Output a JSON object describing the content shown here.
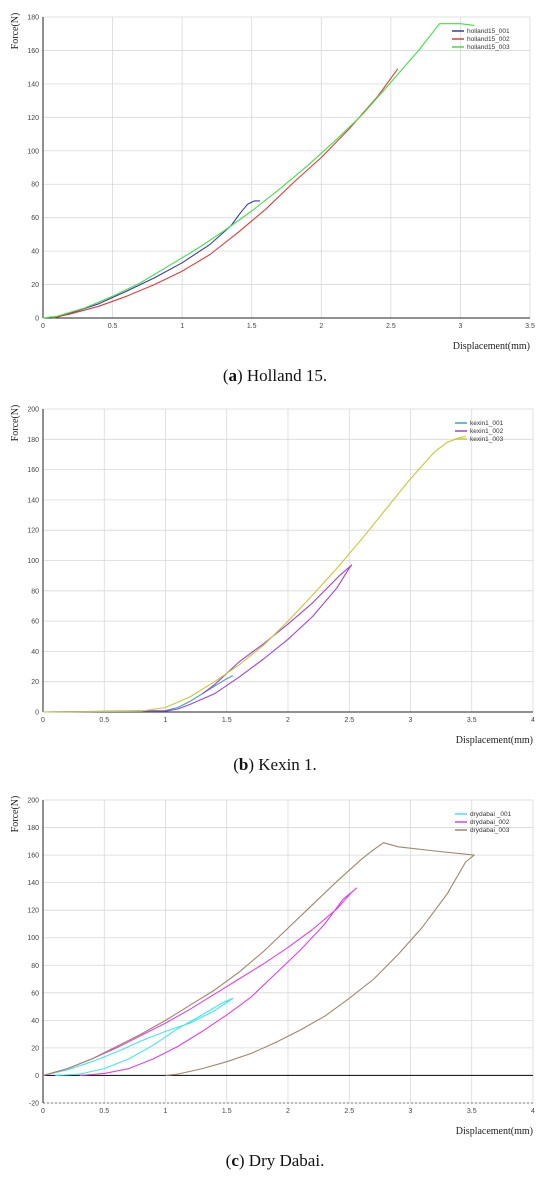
{
  "chart_data": [
    {
      "type": "line",
      "caption_letter": "a",
      "caption_text": " Holland 15.",
      "xlabel": "Displacement(mm)",
      "ylabel": "Force(N)",
      "xlim": [
        0,
        3.5
      ],
      "ylim": [
        0,
        180
      ],
      "xticks": [
        0,
        0.5,
        1,
        1.5,
        2,
        2.5,
        3,
        3.5
      ],
      "yticks": [
        0,
        20,
        40,
        60,
        80,
        100,
        120,
        140,
        160,
        180
      ],
      "grid": true,
      "legend": "top-right",
      "series": [
        {
          "name": "holland15_001",
          "color": "#3a3aa8",
          "points": [
            [
              0.08,
              0
            ],
            [
              0.2,
              3
            ],
            [
              0.4,
              8.5
            ],
            [
              0.6,
              16
            ],
            [
              0.8,
              24
            ],
            [
              1.0,
              33
            ],
            [
              1.2,
              44
            ],
            [
              1.35,
              55
            ],
            [
              1.42,
              63
            ],
            [
              1.47,
              68
            ],
            [
              1.52,
              70
            ],
            [
              1.56,
              70
            ]
          ]
        },
        {
          "name": "holland15_002",
          "color": "#e03a3a",
          "points": [
            [
              0.07,
              0
            ],
            [
              0.2,
              2.5
            ],
            [
              0.4,
              7
            ],
            [
              0.6,
              13
            ],
            [
              0.8,
              20
            ],
            [
              1.0,
              28
            ],
            [
              1.2,
              38
            ],
            [
              1.4,
              51
            ],
            [
              1.6,
              65
            ],
            [
              1.8,
              81
            ],
            [
              2.0,
              96
            ],
            [
              2.2,
              113
            ],
            [
              2.4,
              132
            ],
            [
              2.48,
              141
            ],
            [
              2.55,
              149
            ]
          ]
        },
        {
          "name": "holland15_003",
          "color": "#40e040",
          "points": [
            [
              0,
              0
            ],
            [
              0.1,
              1
            ],
            [
              0.3,
              6
            ],
            [
              0.5,
              13
            ],
            [
              0.7,
              21
            ],
            [
              0.9,
              31
            ],
            [
              1.1,
              41
            ],
            [
              1.3,
              52
            ],
            [
              1.5,
              64
            ],
            [
              1.7,
              77
            ],
            [
              1.9,
              91
            ],
            [
              2.1,
              106
            ],
            [
              2.3,
              122
            ],
            [
              2.5,
              141
            ],
            [
              2.7,
              160
            ],
            [
              2.85,
              176
            ],
            [
              3.0,
              176
            ],
            [
              3.1,
              175
            ]
          ]
        }
      ]
    },
    {
      "type": "line",
      "caption_letter": "b",
      "caption_text": " Kexin 1.",
      "xlabel": "Displacement(mm)",
      "ylabel": "Force(N)",
      "xlim": [
        0,
        4
      ],
      "ylim": [
        0,
        200
      ],
      "xticks": [
        0,
        0.5,
        1,
        1.5,
        2,
        2.5,
        3,
        3.5,
        4
      ],
      "yticks": [
        0,
        20,
        40,
        60,
        80,
        100,
        120,
        140,
        160,
        180,
        200
      ],
      "grid": true,
      "legend": "top-right",
      "series": [
        {
          "name": "kexin1_001",
          "color": "#3aa0c8",
          "points": [
            [
              0,
              0
            ],
            [
              0.6,
              0.5
            ],
            [
              1.0,
              1
            ],
            [
              1.1,
              3
            ],
            [
              1.2,
              7
            ],
            [
              1.3,
              12
            ],
            [
              1.4,
              17
            ],
            [
              1.5,
              22
            ],
            [
              1.55,
              24
            ]
          ]
        },
        {
          "name": "kexin1_002",
          "color": "#a040e0",
          "points": [
            [
              0,
              0
            ],
            [
              0.7,
              0.5
            ],
            [
              1.0,
              0.5
            ],
            [
              1.1,
              2
            ],
            [
              1.2,
              5
            ],
            [
              1.4,
              12
            ],
            [
              1.6,
              23
            ],
            [
              1.8,
              35
            ],
            [
              2.0,
              48
            ],
            [
              2.2,
              63
            ],
            [
              2.4,
              82
            ],
            [
              2.5,
              95
            ],
            [
              2.52,
              97
            ],
            [
              2.42,
              90
            ],
            [
              2.2,
              72
            ],
            [
              2.0,
              58
            ],
            [
              1.8,
              45
            ],
            [
              1.6,
              33
            ],
            [
              1.4,
              18
            ],
            [
              1.3,
              12
            ]
          ]
        },
        {
          "name": "kexin1_003",
          "color": "#c8c832",
          "points": [
            [
              0,
              0
            ],
            [
              0.8,
              0.5
            ],
            [
              1.0,
              3
            ],
            [
              1.2,
              10
            ],
            [
              1.4,
              20
            ],
            [
              1.6,
              31
            ],
            [
              1.8,
              44
            ],
            [
              2.0,
              60
            ],
            [
              2.2,
              77
            ],
            [
              2.4,
              95
            ],
            [
              2.6,
              114
            ],
            [
              2.8,
              134
            ],
            [
              3.0,
              154
            ],
            [
              3.2,
              172
            ],
            [
              3.3,
              178
            ],
            [
              3.4,
              181
            ],
            [
              3.45,
              182
            ]
          ]
        }
      ]
    },
    {
      "type": "line",
      "caption_letter": "c",
      "caption_text": " Dry Dabai.",
      "xlabel": "Displacement(mm)",
      "ylabel": "Force(N)",
      "xlim": [
        0,
        4
      ],
      "ylim": [
        -20,
        200
      ],
      "xticks": [
        0,
        0.5,
        1,
        1.5,
        2,
        2.5,
        3,
        3.5,
        4
      ],
      "yticks": [
        -20,
        0,
        20,
        40,
        60,
        80,
        100,
        120,
        140,
        160,
        180,
        200
      ],
      "grid": true,
      "legend": "top-right",
      "series": [
        {
          "name": "drydabai _001",
          "color": "#40e8e8",
          "points": [
            [
              0,
              0
            ],
            [
              0.2,
              4
            ],
            [
              0.4,
              10
            ],
            [
              0.6,
              17
            ],
            [
              0.8,
              25
            ],
            [
              1.0,
              32
            ],
            [
              1.2,
              38
            ],
            [
              1.4,
              47
            ],
            [
              1.5,
              53
            ],
            [
              1.55,
              56
            ],
            [
              1.45,
              52
            ],
            [
              1.3,
              44
            ],
            [
              1.1,
              34
            ],
            [
              0.9,
              22
            ],
            [
              0.7,
              12
            ],
            [
              0.5,
              5
            ],
            [
              0.3,
              1
            ],
            [
              0.1,
              0
            ]
          ]
        },
        {
          "name": "drydabai_002",
          "color": "#e040e0",
          "points": [
            [
              0,
              0
            ],
            [
              0.2,
              5
            ],
            [
              0.4,
              12
            ],
            [
              0.6,
              20
            ],
            [
              0.8,
              29
            ],
            [
              1.0,
              38
            ],
            [
              1.2,
              48
            ],
            [
              1.4,
              59
            ],
            [
              1.6,
              70
            ],
            [
              1.8,
              81
            ],
            [
              2.0,
              93
            ],
            [
              2.2,
              106
            ],
            [
              2.4,
              121
            ],
            [
              2.52,
              133
            ],
            [
              2.56,
              136
            ],
            [
              2.45,
              128
            ],
            [
              2.3,
              110
            ],
            [
              2.1,
              91
            ],
            [
              1.9,
              74
            ],
            [
              1.7,
              57
            ],
            [
              1.5,
              44
            ],
            [
              1.3,
              32
            ],
            [
              1.1,
              21
            ],
            [
              0.9,
              12
            ],
            [
              0.7,
              5
            ],
            [
              0.5,
              1.5
            ],
            [
              0.3,
              0
            ]
          ]
        },
        {
          "name": "drydabai_003",
          "color": "#a0866a",
          "points": [
            [
              0,
              0
            ],
            [
              0.2,
              5
            ],
            [
              0.4,
              12
            ],
            [
              0.6,
              21
            ],
            [
              0.8,
              30
            ],
            [
              1.0,
              40
            ],
            [
              1.2,
              51
            ],
            [
              1.4,
              62
            ],
            [
              1.6,
              75
            ],
            [
              1.8,
              90
            ],
            [
              2.0,
              107
            ],
            [
              2.2,
              124
            ],
            [
              2.4,
              141
            ],
            [
              2.6,
              157
            ],
            [
              2.7,
              164
            ],
            [
              2.78,
              169
            ],
            [
              2.9,
              166
            ],
            [
              3.2,
              163
            ],
            [
              3.52,
              160
            ],
            [
              3.45,
              155
            ],
            [
              3.3,
              132
            ],
            [
              3.1,
              108
            ],
            [
              2.9,
              88
            ],
            [
              2.7,
              70
            ],
            [
              2.5,
              56
            ],
            [
              2.3,
              43
            ],
            [
              2.1,
              33
            ],
            [
              1.9,
              24
            ],
            [
              1.7,
              16
            ],
            [
              1.5,
              10
            ],
            [
              1.3,
              5
            ],
            [
              1.1,
              1
            ],
            [
              1.0,
              0
            ]
          ]
        }
      ]
    }
  ]
}
